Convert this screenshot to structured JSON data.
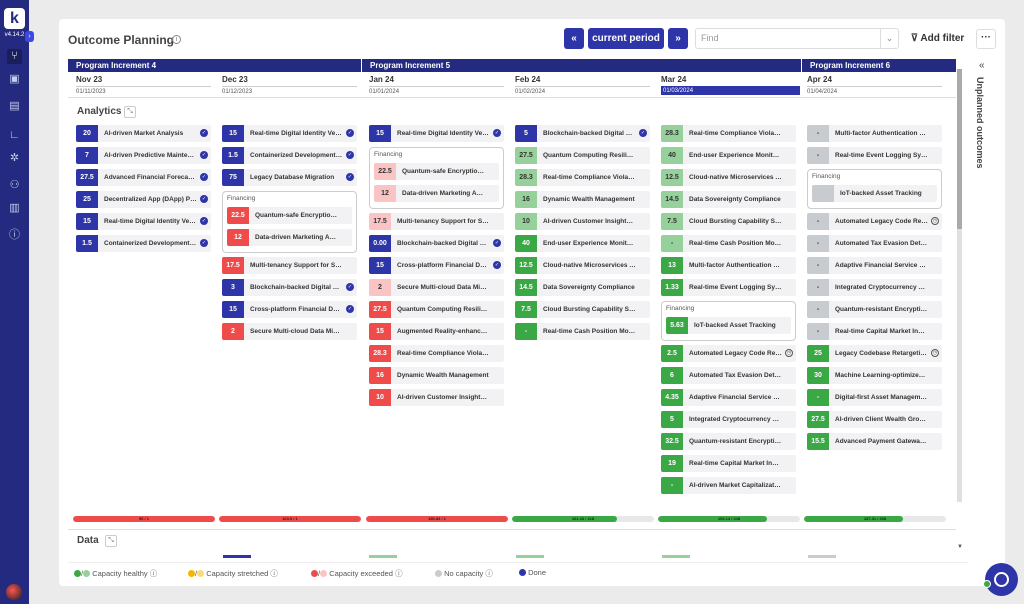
{
  "app": {
    "logo": "k",
    "version": "v4.14.2",
    "expand_icon": "chevron-right-icon"
  },
  "sidebar": {
    "items": [
      {
        "icon": "hierarchy-icon",
        "sym": "⑂"
      },
      {
        "icon": "briefcase-icon",
        "sym": "▣"
      },
      {
        "icon": "calendar-icon",
        "sym": "▤"
      },
      {
        "icon": "chart-icon",
        "sym": "∟"
      },
      {
        "icon": "puzzle-icon",
        "sym": "✲"
      },
      {
        "icon": "people-icon",
        "sym": "⚇"
      },
      {
        "icon": "building-icon",
        "sym": "▥"
      },
      {
        "icon": "info-icon",
        "sym": "ⓘ"
      }
    ]
  },
  "header": {
    "title": "Outcome Planning",
    "prev_label": "«",
    "current_label": "current period",
    "next_label": "»",
    "find_placeholder": "Find",
    "add_filter": "Add filter",
    "more": "···"
  },
  "increments": [
    "Program Increment 4",
    "Program Increment 5",
    "Program Increment 6"
  ],
  "months": [
    {
      "name": "Nov 23",
      "date": "01/11/2023"
    },
    {
      "name": "Dec 23",
      "date": "01/12/2023"
    },
    {
      "name": "Jan 24",
      "date": "01/01/2024"
    },
    {
      "name": "Feb 24",
      "date": "01/02/2024"
    },
    {
      "name": "Mar 24",
      "date": "01/03/2024"
    },
    {
      "name": "Apr 24",
      "date": "01/04/2024"
    }
  ],
  "sections": {
    "analytics": "Analytics",
    "data": "Data"
  },
  "group_label": "Financing",
  "capacity": [
    {
      "label": "96 / 1",
      "fill": 1,
      "color": "#ef4b4b"
    },
    {
      "label": "163.5 / 1",
      "fill": 1,
      "color": "#ef4b4b"
    },
    {
      "label": "180.83 / 1",
      "fill": 1,
      "color": "#ef4b4b"
    },
    {
      "label": "161.33 / 218",
      "fill": 0.74,
      "color": "#3aa845"
    },
    {
      "label": "192.14 / 248",
      "fill": 0.77,
      "color": "#3aa845"
    },
    {
      "label": "187.31 / 268",
      "fill": 0.7,
      "color": "#3aa845"
    }
  ],
  "legend": {
    "healthy": "Capacity healthy",
    "stretched": "Capacity stretched",
    "exceeded": "Capacity exceeded",
    "none": "No capacity",
    "done": "Done"
  },
  "right_panel": {
    "label": "Unplanned outcomes"
  },
  "columns": [
    [
      {
        "v": "20",
        "c": "nv",
        "t": "AI-driven Market Analysis",
        "i": "done"
      },
      {
        "v": "7",
        "c": "nv",
        "t": "AI-driven Predictive Maintenance",
        "i": "done"
      },
      {
        "v": "27.5",
        "c": "nv",
        "t": "Advanced Financial Forecasting",
        "i": "done"
      },
      {
        "v": "25",
        "c": "nv",
        "t": "Decentralized App (DApp) Platform",
        "i": "done"
      },
      {
        "v": "15",
        "c": "nv",
        "t": "Real-time Digital Identity Verification",
        "i": "done"
      },
      {
        "v": "1.5",
        "c": "nv",
        "t": "Containerized Development Environment",
        "i": "done"
      }
    ],
    [
      {
        "v": "15",
        "c": "nv",
        "t": "Real-time Digital Identity Verification",
        "i": "done"
      },
      {
        "v": "1.5",
        "c": "nv",
        "t": "Containerized Development Environment",
        "i": "done"
      },
      {
        "v": "75",
        "c": "nv",
        "t": "Legacy Database Migration",
        "i": "done"
      },
      {
        "group": [
          {
            "v": "22.5",
            "c": "rd",
            "t": "Quantum-safe Encryption Protocols"
          },
          {
            "v": "12",
            "c": "rd",
            "t": "Data-driven Marketing Automation"
          }
        ]
      },
      {
        "v": "17.5",
        "c": "rd",
        "t": "Multi-tenancy Support for SaaS"
      },
      {
        "v": "3",
        "c": "nv",
        "t": "Blockchain-backed Digital Ledger",
        "i": "done"
      },
      {
        "v": "15",
        "c": "nv",
        "t": "Cross-platform Financial Dashboard",
        "i": "done"
      },
      {
        "v": "2",
        "c": "rd",
        "t": "Secure Multi-cloud Data Migration"
      }
    ],
    [
      {
        "v": "15",
        "c": "nv",
        "t": "Real-time Digital Identity Verification",
        "i": "done"
      },
      {
        "group": [
          {
            "v": "22.5",
            "c": "lr",
            "t": "Quantum-safe Encryption Protocols"
          },
          {
            "v": "12",
            "c": "lr",
            "t": "Data-driven Marketing Automation"
          }
        ]
      },
      {
        "v": "17.5",
        "c": "lr",
        "t": "Multi-tenancy Support for SaaS"
      },
      {
        "v": "0.00",
        "c": "nv",
        "t": "Blockchain-backed Digital Ledger",
        "i": "done"
      },
      {
        "v": "15",
        "c": "nv",
        "t": "Cross-platform Financial Dashboard",
        "i": "done"
      },
      {
        "v": "2",
        "c": "lr",
        "t": "Secure Multi-cloud Data Migration"
      },
      {
        "v": "27.5",
        "c": "rd",
        "t": "Quantum Computing Resilience"
      },
      {
        "v": "15",
        "c": "rd",
        "t": "Augmented Reality-enhanced Retail"
      },
      {
        "v": "28.3",
        "c": "rd",
        "t": "Real-time Compliance Violations"
      },
      {
        "v": "16",
        "c": "rd",
        "t": "Dynamic Wealth Management"
      },
      {
        "v": "10",
        "c": "rd",
        "t": "AI-driven Customer Insights Engine"
      }
    ],
    [
      {
        "v": "5",
        "c": "nv",
        "t": "Blockchain-backed Digital Ledger",
        "i": "done"
      },
      {
        "v": "27.5",
        "c": "lg",
        "t": "Quantum Computing Resilience"
      },
      {
        "v": "28.3",
        "c": "lg",
        "t": "Real-time Compliance Violations"
      },
      {
        "v": "16",
        "c": "lg",
        "t": "Dynamic Wealth Management"
      },
      {
        "v": "10",
        "c": "lg",
        "t": "AI-driven Customer Insights Engine"
      },
      {
        "v": "40",
        "c": "gr",
        "t": "End-user Experience Monitoring"
      },
      {
        "v": "12.5",
        "c": "gr",
        "t": "Cloud-native Microservices Architecture"
      },
      {
        "v": "14.5",
        "c": "gr",
        "t": "Data Sovereignty Compliance"
      },
      {
        "v": "7.5",
        "c": "gr",
        "t": "Cloud Bursting Capability Setup"
      },
      {
        "v": "-",
        "c": "gr",
        "t": "Real-time Cash Position Monitoring"
      }
    ],
    [
      {
        "v": "28.3",
        "c": "lg",
        "t": "Real-time Compliance Violations"
      },
      {
        "v": "40",
        "c": "lg",
        "t": "End-user Experience Monitoring"
      },
      {
        "v": "12.5",
        "c": "lg",
        "t": "Cloud-native Microservices Architecture"
      },
      {
        "v": "14.5",
        "c": "lg",
        "t": "Data Sovereignty Compliance"
      },
      {
        "v": "7.5",
        "c": "lg",
        "t": "Cloud Bursting Capability Setup"
      },
      {
        "v": "-",
        "c": "lg",
        "t": "Real-time Cash Position Monitoring"
      },
      {
        "v": "13",
        "c": "gr",
        "t": "Multi-factor Authentication Rollout"
      },
      {
        "v": "1.33",
        "c": "gr",
        "t": "Real-time Event Logging System"
      },
      {
        "group": [
          {
            "v": "5.63",
            "c": "gr",
            "t": "IoT-backed Asset Tracking"
          }
        ]
      },
      {
        "v": "2.5",
        "c": "gr",
        "t": "Automated Legacy Code Refactoring",
        "i": "clock"
      },
      {
        "v": "6",
        "c": "gr",
        "t": "Automated Tax Evasion Detection"
      },
      {
        "v": "4.35",
        "c": "gr",
        "t": "Adaptive Financial Service Offerings"
      },
      {
        "v": "5",
        "c": "gr",
        "t": "Integrated Cryptocurrency Wallet"
      },
      {
        "v": "32.5",
        "c": "gr",
        "t": "Quantum-resistant Encryption Algorithms"
      },
      {
        "v": "19",
        "c": "gr",
        "t": "Real-time Capital Market Insights"
      },
      {
        "v": "-",
        "c": "gr",
        "t": "AI-driven Market Capitalization Analysis"
      }
    ],
    [
      {
        "v": "-",
        "c": "gy",
        "t": "Multi-factor Authentication Rollout"
      },
      {
        "v": "-",
        "c": "gy",
        "t": "Real-time Event Logging System"
      },
      {
        "group": [
          {
            "v": "",
            "c": "gy",
            "t": "IoT-backed Asset Tracking"
          }
        ]
      },
      {
        "v": "-",
        "c": "gy",
        "t": "Automated Legacy Code Refactoring",
        "i": "clock"
      },
      {
        "v": "-",
        "c": "gy",
        "t": "Automated Tax Evasion Detection"
      },
      {
        "v": "-",
        "c": "gy",
        "t": "Adaptive Financial Service Offerings"
      },
      {
        "v": "-",
        "c": "gy",
        "t": "Integrated Cryptocurrency Wallet"
      },
      {
        "v": "-",
        "c": "gy",
        "t": "Quantum-resistant Encryption Algorithms"
      },
      {
        "v": "-",
        "c": "gy",
        "t": "Real-time Capital Market Insights"
      },
      {
        "v": "25",
        "c": "gr",
        "t": "Legacy Codebase Retargeting",
        "i": "clock"
      },
      {
        "v": "30",
        "c": "gr",
        "t": "Machine Learning-optimized Portfolio"
      },
      {
        "v": "-",
        "c": "gr",
        "t": "Digital-first Asset Management"
      },
      {
        "v": "27.5",
        "c": "gr",
        "t": "AI-driven Client Wealth Growth"
      },
      {
        "v": "15.5",
        "c": "gr",
        "t": "Advanced Payment Gateway Security"
      }
    ]
  ]
}
